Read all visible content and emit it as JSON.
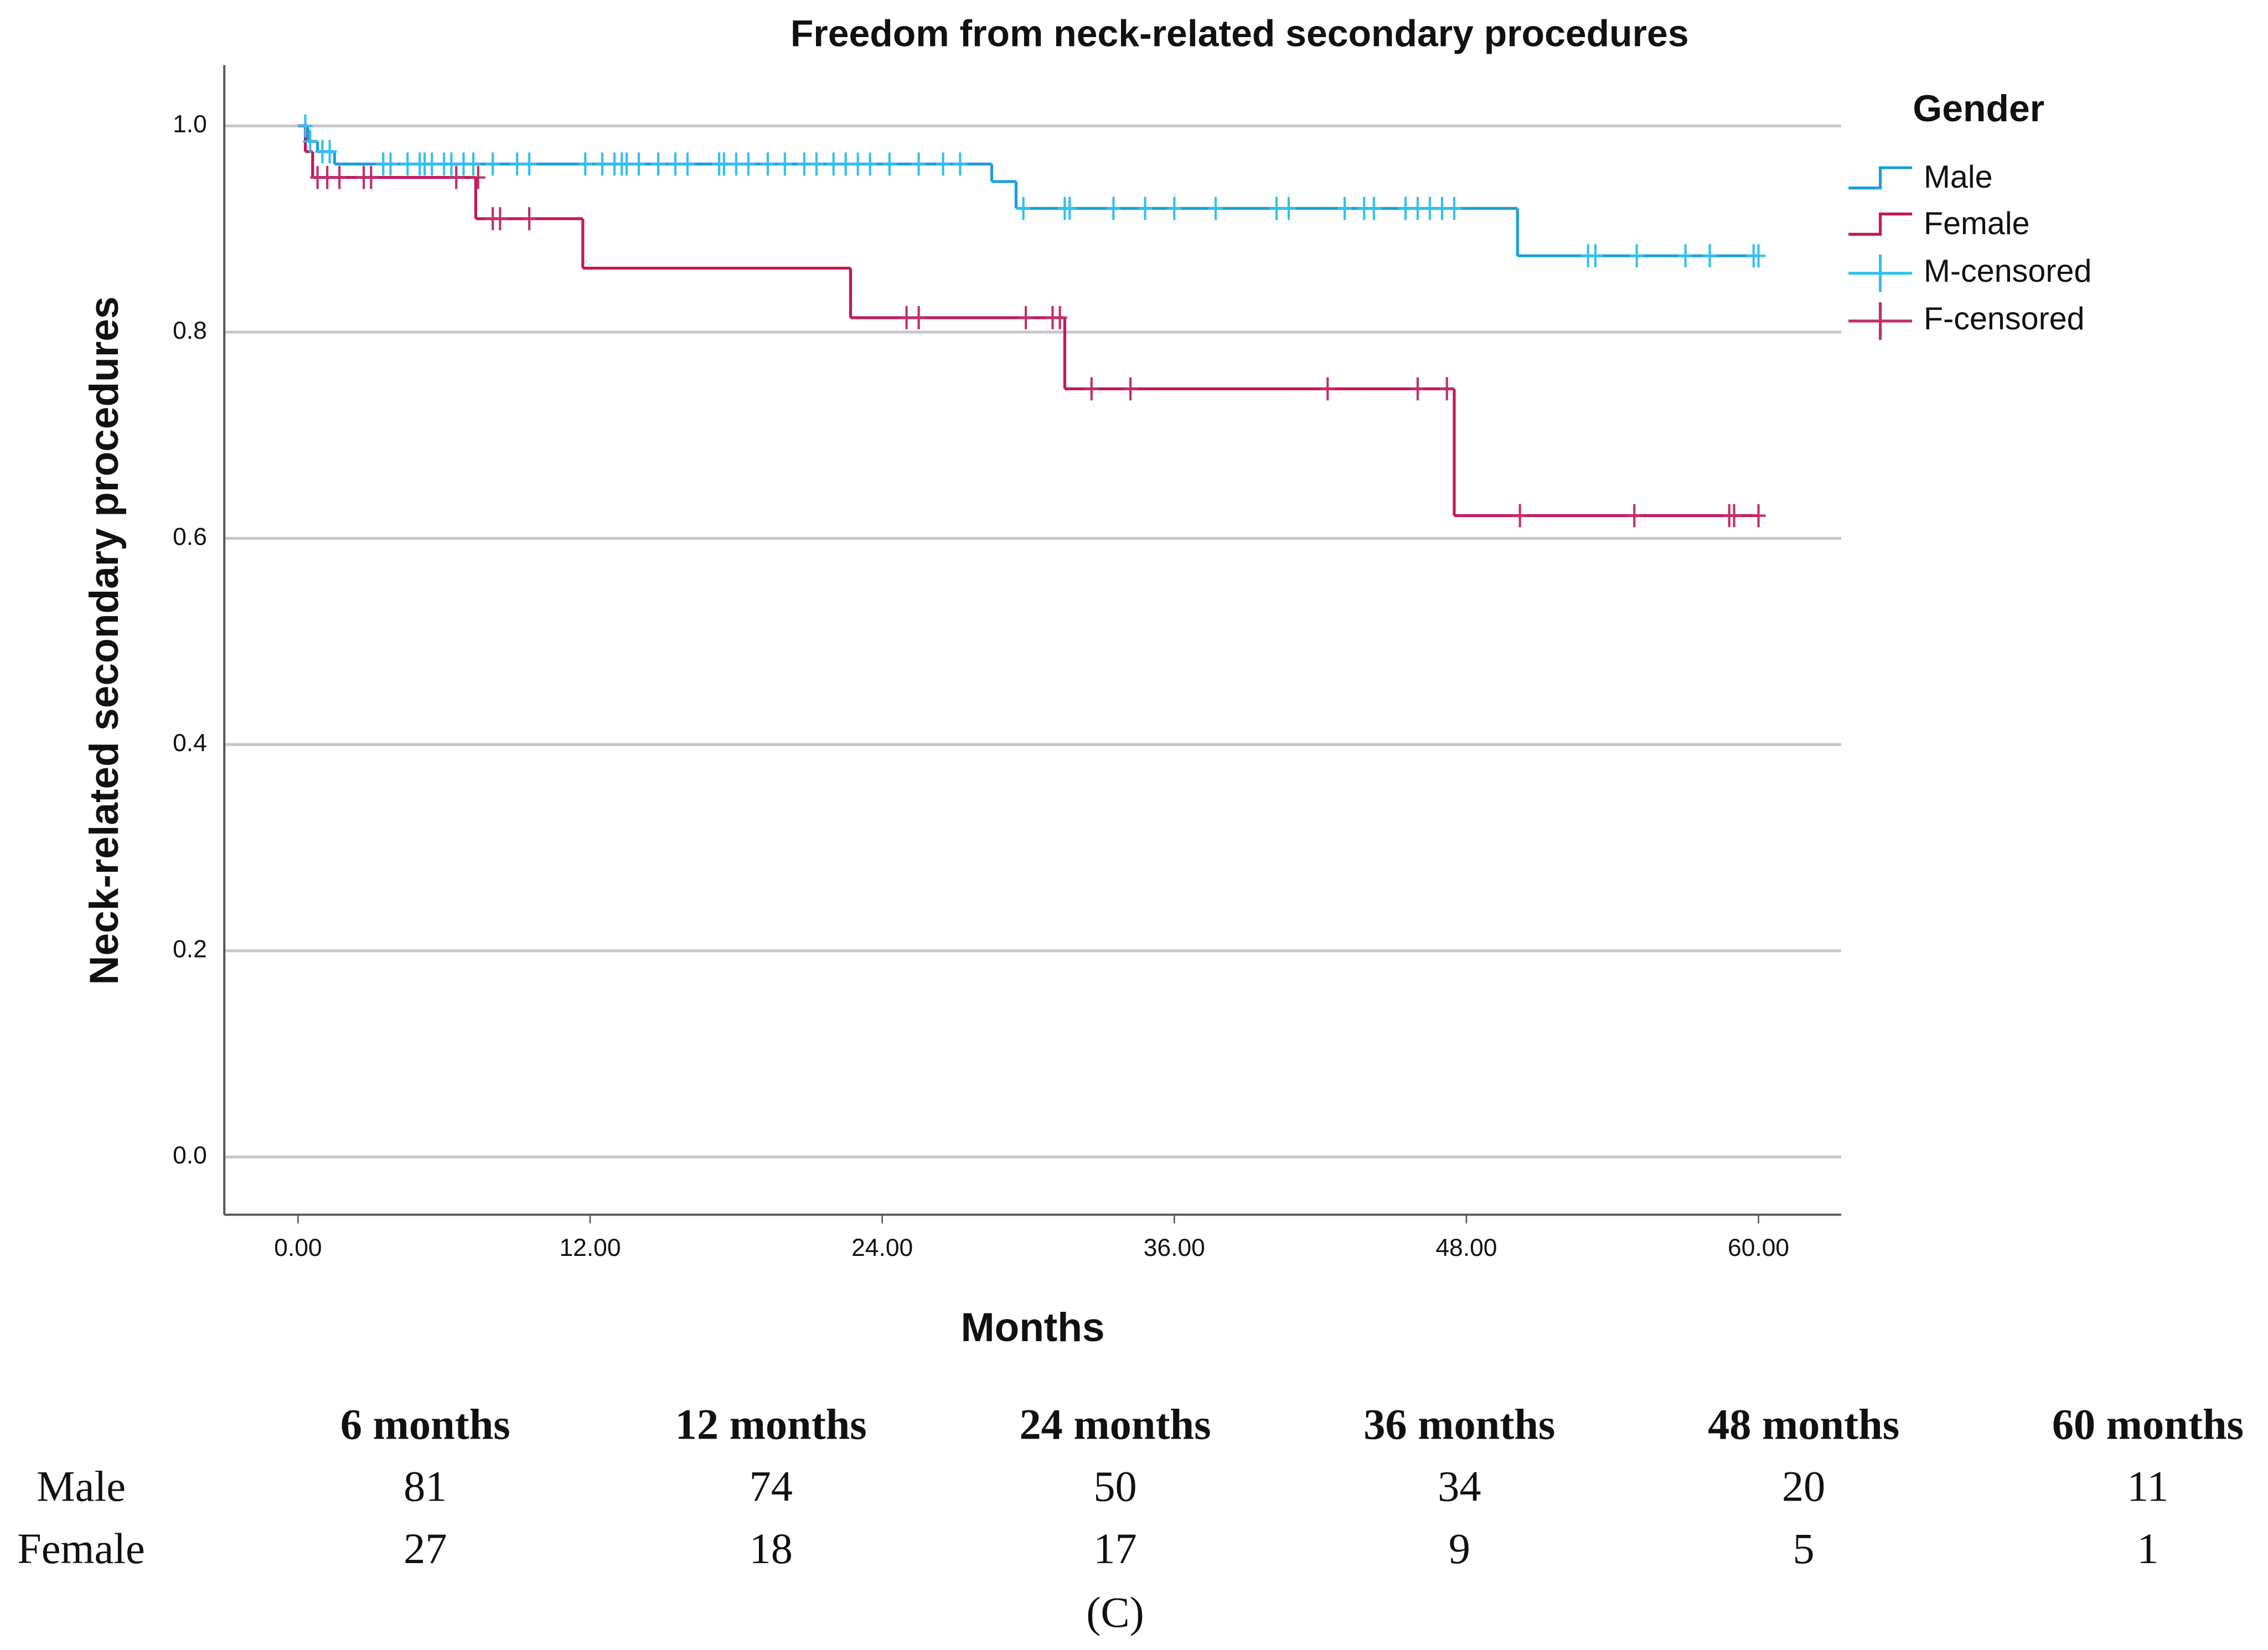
{
  "chart_data": {
    "type": "step",
    "title": "Freedom from neck-related secondary procedures",
    "x_label": "Months",
    "y_label": "Neck-related secondary procedures",
    "legend_title": "Gender",
    "xlim": [
      -3.03,
      63.4
    ],
    "ylim": [
      -0.056,
      1.059
    ],
    "xticks": [
      {
        "value": 0,
        "label": "0.00"
      },
      {
        "value": 12,
        "label": "12.00"
      },
      {
        "value": 24,
        "label": "24.00"
      },
      {
        "value": 36,
        "label": "36.00"
      },
      {
        "value": 48,
        "label": "48.00"
      },
      {
        "value": 60,
        "label": "60.00"
      }
    ],
    "yticks": [
      {
        "value": 0,
        "label": "0.0"
      },
      {
        "value": 0.2,
        "label": "0.2"
      },
      {
        "value": 0.4,
        "label": "0.4"
      },
      {
        "value": 0.6,
        "label": "0.6"
      },
      {
        "value": 0.8,
        "label": "0.8"
      },
      {
        "value": 1,
        "label": "1.0"
      }
    ],
    "grid": true,
    "legend": "right",
    "series": [
      {
        "name": "Male",
        "color": "#1a9fdc",
        "x": [
          0,
          0.4,
          0.8,
          1.5,
          28.5,
          29.5,
          50.1,
          60
        ],
        "values": [
          1,
          0.985,
          0.975,
          0.963,
          0.946,
          0.92,
          0.874,
          0.874
        ]
      },
      {
        "name": "Female",
        "color": "#c2185b",
        "x": [
          0,
          0.3,
          0.6,
          7.3,
          11.7,
          22.7,
          31.5,
          47.5,
          60
        ],
        "values": [
          1,
          0.975,
          0.95,
          0.91,
          0.862,
          0.814,
          0.745,
          0.622,
          0.622
        ]
      }
    ],
    "censored": [
      {
        "name": "M-censored",
        "color": "#33c0ee",
        "x": [
          0.3,
          0.5,
          1,
          1.3,
          3.5,
          3.8,
          4.5,
          5,
          5.2,
          5.5,
          6,
          6.3,
          6.8,
          7.2,
          8,
          9,
          9.5,
          11.8,
          12.5,
          13,
          13.3,
          13.5,
          14,
          14.8,
          15.5,
          16,
          17.3,
          17.5,
          18,
          18.5,
          19.3,
          20,
          20.8,
          21.3,
          22,
          22.5,
          23,
          23.5,
          24.3,
          25.5,
          26.5,
          27.2,
          29.8,
          31.5,
          31.7,
          33.5,
          34.8,
          36,
          37.7,
          40.2,
          40.7,
          43,
          43.8,
          44.2,
          45.5,
          46,
          46.5,
          47,
          47.5,
          53,
          53.3,
          55,
          57,
          58,
          59.8,
          60
        ],
        "values": [
          1,
          0.985,
          0.975,
          0.975,
          0.963,
          0.963,
          0.963,
          0.963,
          0.963,
          0.963,
          0.963,
          0.963,
          0.963,
          0.963,
          0.963,
          0.963,
          0.963,
          0.963,
          0.963,
          0.963,
          0.963,
          0.963,
          0.963,
          0.963,
          0.963,
          0.963,
          0.963,
          0.963,
          0.963,
          0.963,
          0.963,
          0.963,
          0.963,
          0.963,
          0.963,
          0.963,
          0.963,
          0.963,
          0.963,
          0.963,
          0.963,
          0.963,
          0.92,
          0.92,
          0.92,
          0.92,
          0.92,
          0.92,
          0.92,
          0.92,
          0.92,
          0.92,
          0.92,
          0.92,
          0.92,
          0.92,
          0.92,
          0.92,
          0.92,
          0.874,
          0.874,
          0.874,
          0.874,
          0.874,
          0.874,
          0.874
        ]
      },
      {
        "name": "F-censored",
        "color": "#c0306a",
        "x": [
          0.8,
          1.2,
          1.7,
          2.7,
          3,
          6.5,
          7.4,
          8,
          8.3,
          9.5,
          25,
          25.5,
          29.9,
          31,
          31.3,
          32.6,
          34.2,
          42.3,
          46,
          47.2,
          50.2,
          54.9,
          58.8,
          59,
          60
        ],
        "values": [
          0.95,
          0.95,
          0.95,
          0.95,
          0.95,
          0.95,
          0.95,
          0.91,
          0.91,
          0.91,
          0.814,
          0.814,
          0.814,
          0.814,
          0.814,
          0.745,
          0.745,
          0.745,
          0.745,
          0.745,
          0.622,
          0.622,
          0.622,
          0.622,
          0.622
        ]
      }
    ]
  },
  "risk_table": {
    "columns": [
      "6 months",
      "12 months",
      "24 months",
      "36 months",
      "48 months",
      "60 months"
    ],
    "rows": [
      {
        "label": "Male",
        "values": [
          81,
          74,
          50,
          34,
          20,
          11
        ]
      },
      {
        "label": "Female",
        "values": [
          27,
          18,
          17,
          9,
          5,
          1
        ]
      }
    ]
  },
  "caption": "(C)"
}
